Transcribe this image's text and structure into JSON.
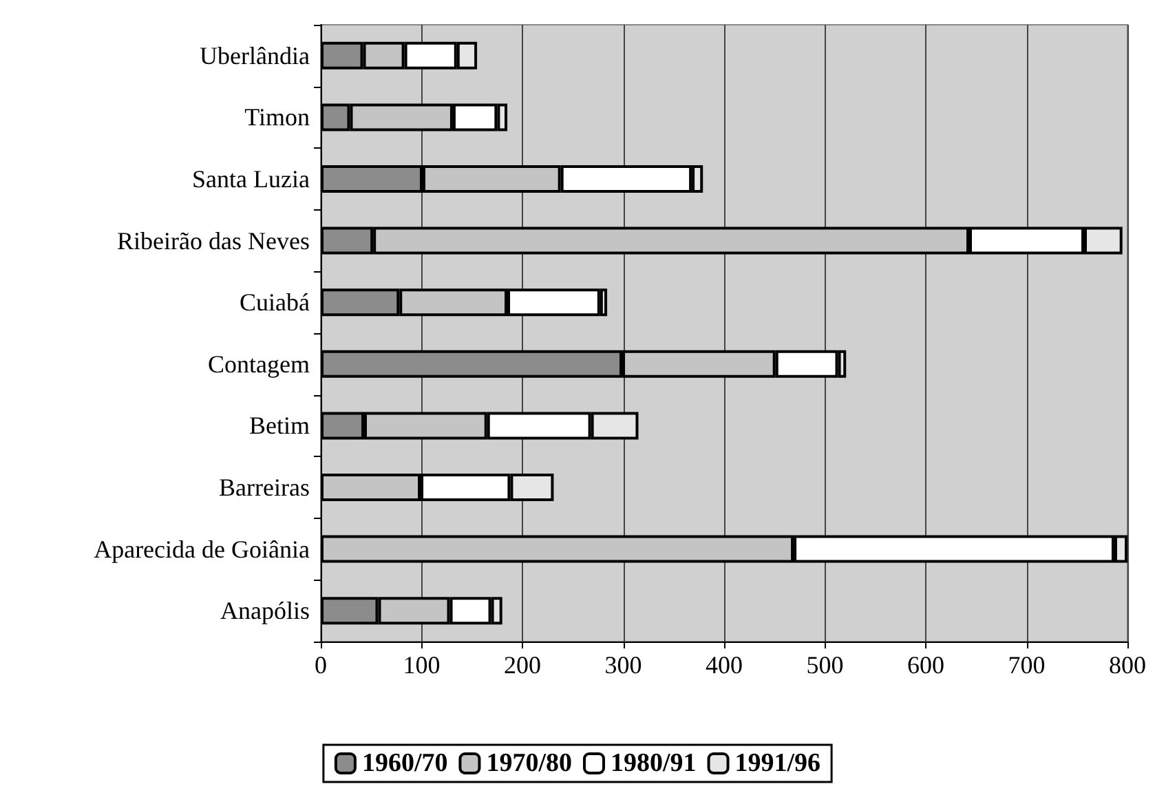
{
  "chart_data": {
    "type": "bar",
    "orientation": "horizontal",
    "stacked": true,
    "categories": [
      "Uberlândia",
      "Timon",
      "Santa Luzia",
      "Ribeirão das Neves",
      "Cuiabá",
      "Contagem",
      "Betim",
      "Barreiras",
      "Aparecida de Goiânia",
      "Anapólis"
    ],
    "series": [
      {
        "name": "1960/70",
        "color": "#8c8c8c",
        "values": [
          42,
          29,
          101,
          52,
          78,
          299,
          43,
          null,
          null,
          57
        ]
      },
      {
        "name": "1970/80",
        "color": "#c4c4c4",
        "values": [
          41,
          102,
          137,
          591,
          107,
          152,
          122,
          99,
          469,
          71
        ]
      },
      {
        "name": "1980/91",
        "color": "#ffffff",
        "values": [
          52,
          44,
          130,
          114,
          92,
          62,
          103,
          89,
          318,
          41
        ]
      },
      {
        "name": "1991/96",
        "color": "#e6e6e6",
        "values": [
          20,
          10,
          11,
          38,
          7,
          8,
          47,
          43,
          13,
          11
        ]
      }
    ],
    "xlim": [
      0,
      800
    ],
    "xticks": [
      0,
      100,
      200,
      300,
      400,
      500,
      600,
      700,
      800
    ],
    "grid": "x",
    "legend": "bottom"
  }
}
